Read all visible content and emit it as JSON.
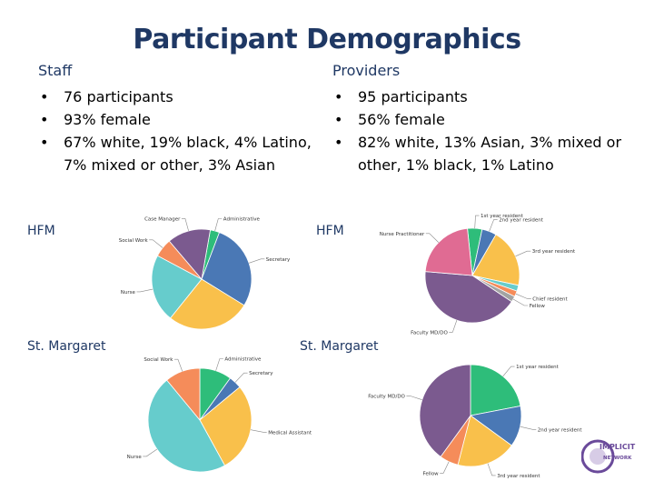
{
  "title": "Participant Demographics",
  "staff": {
    "heading": "Staff",
    "bullets": [
      "76 participants",
      "93% female",
      "67% white, 19% black, 4% Latino, 7% mixed or other, 3% Asian"
    ]
  },
  "providers": {
    "heading": "Providers",
    "bullets": [
      "95 participants",
      "56% female",
      "82% white, 13% Asian, 3% mixed or other, 1% black, 1% Latino"
    ]
  },
  "labels": {
    "hfm_left": "HFM",
    "stm_left": "St. Margaret",
    "hfm_right": "HFM",
    "stm_right": "St. Margaret"
  },
  "logo": {
    "line1": "IMPLICIT",
    "line2": "NETWORK"
  },
  "colors": {
    "title": "#1f3864",
    "green": "#2ebd7a",
    "blue": "#4a78b5",
    "yellow": "#f9c04b",
    "teal": "#66cccc",
    "orange": "#f58c5a",
    "purple": "#7b5a8f",
    "pink": "#e06b93"
  },
  "chart_data": [
    {
      "type": "pie",
      "group": "Staff HFM",
      "slices": [
        {
          "label": "Administrative",
          "value": 3,
          "color": "#2ebd7a"
        },
        {
          "label": "Secretary",
          "value": 28,
          "color": "#4a78b5"
        },
        {
          "label": "",
          "value": 27,
          "color": "#f9c04b"
        },
        {
          "label": "Nurse",
          "value": 22,
          "color": "#66cccc"
        },
        {
          "label": "Social Work",
          "value": 6,
          "color": "#f58c5a"
        },
        {
          "label": "Case Manager",
          "value": 14,
          "color": "#7b5a8f"
        }
      ]
    },
    {
      "type": "pie",
      "group": "Staff St. Margaret",
      "slices": [
        {
          "label": "Administrative",
          "value": 10,
          "color": "#2ebd7a"
        },
        {
          "label": "Secretary",
          "value": 4,
          "color": "#4a78b5"
        },
        {
          "label": "Medical Assistant",
          "value": 28,
          "color": "#f9c04b"
        },
        {
          "label": "Nurse",
          "value": 47,
          "color": "#66cccc"
        },
        {
          "label": "Social Work",
          "value": 11,
          "color": "#f58c5a"
        }
      ]
    },
    {
      "type": "pie",
      "group": "Providers HFM",
      "slices": [
        {
          "label": "1st year resident",
          "value": 5,
          "color": "#2ebd7a"
        },
        {
          "label": "2nd year resident",
          "value": 5,
          "color": "#4a78b5"
        },
        {
          "label": "3rd year resident",
          "value": 20,
          "color": "#f9c04b"
        },
        {
          "label": "",
          "value": 2,
          "color": "#66cccc"
        },
        {
          "label": "Chief resident",
          "value": 2,
          "color": "#f58c5a"
        },
        {
          "label": "Fellow",
          "value": 2,
          "color": "#a3a3a3"
        },
        {
          "label": "Faculty MD/DO",
          "value": 42,
          "color": "#7b5a8f"
        },
        {
          "label": "Nurse Practitioner",
          "value": 22,
          "color": "#e06b93"
        }
      ]
    },
    {
      "type": "pie",
      "group": "Providers St. Margaret",
      "slices": [
        {
          "label": "1st year resident",
          "value": 22,
          "color": "#2ebd7a"
        },
        {
          "label": "2nd year resident",
          "value": 13,
          "color": "#4a78b5"
        },
        {
          "label": "3rd year resident",
          "value": 19,
          "color": "#f9c04b"
        },
        {
          "label": "Fellow",
          "value": 6,
          "color": "#f58c5a"
        },
        {
          "label": "Faculty MD/DO",
          "value": 40,
          "color": "#7b5a8f"
        }
      ]
    }
  ]
}
